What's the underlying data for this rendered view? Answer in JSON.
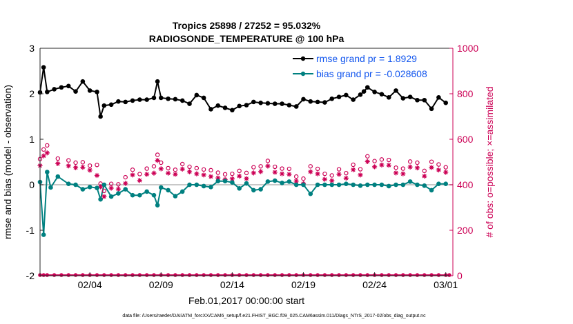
{
  "chart_data": {
    "type": "line",
    "title": "Tropics 25898 / 27252 = 95.032%",
    "subtitle": "RADIOSONDE_TEMPERATURE @ 100 hPa",
    "xlabel": "Feb.01,2017 00:00:00 start",
    "ylabel": "rmse and bias (model - observation)",
    "y2label": "# of obs: o=possible; ×=assimilated",
    "xlim": [
      0,
      29
    ],
    "ylim": [
      -2,
      3
    ],
    "y2lim": [
      0,
      1000
    ],
    "x_tick_values": [
      3.5,
      8.5,
      13.5,
      18.5,
      23.5,
      28.5
    ],
    "x_tick_labels": [
      "02/04",
      "02/09",
      "02/14",
      "02/19",
      "02/24",
      "03/01"
    ],
    "y_ticks": [
      "-2",
      "-1",
      "0",
      "1",
      "2",
      "3"
    ],
    "y2_ticks": [
      "0",
      "200",
      "400",
      "600",
      "800",
      "1000"
    ],
    "legend": [
      "rmse grand pr = 1.8929",
      "bias grand pr = -0.028608"
    ],
    "series": [
      {
        "name": "rmse",
        "color": "#000000",
        "points": [
          [
            0.0,
            2.03
          ],
          [
            0.25,
            2.58
          ],
          [
            0.5,
            2.04
          ],
          [
            1.0,
            2.1
          ],
          [
            1.5,
            2.14
          ],
          [
            2.0,
            2.17
          ],
          [
            2.5,
            2.05
          ],
          [
            3.0,
            2.27
          ],
          [
            3.5,
            2.07
          ],
          [
            4.0,
            2.04
          ],
          [
            4.25,
            1.5
          ],
          [
            4.5,
            1.74
          ],
          [
            5.0,
            1.76
          ],
          [
            5.5,
            1.83
          ],
          [
            6.0,
            1.82
          ],
          [
            6.5,
            1.85
          ],
          [
            7.0,
            1.87
          ],
          [
            7.5,
            1.87
          ],
          [
            8.0,
            1.91
          ],
          [
            8.25,
            2.27
          ],
          [
            8.5,
            1.91
          ],
          [
            9.0,
            1.89
          ],
          [
            9.5,
            1.88
          ],
          [
            10.0,
            1.85
          ],
          [
            10.5,
            1.78
          ],
          [
            11.0,
            1.97
          ],
          [
            11.5,
            1.91
          ],
          [
            12.0,
            1.66
          ],
          [
            12.5,
            1.74
          ],
          [
            13.0,
            1.69
          ],
          [
            13.5,
            1.64
          ],
          [
            14.0,
            1.73
          ],
          [
            14.5,
            1.75
          ],
          [
            15.0,
            1.82
          ],
          [
            15.5,
            1.8
          ],
          [
            16.0,
            1.79
          ],
          [
            16.5,
            1.78
          ],
          [
            17.0,
            1.78
          ],
          [
            17.5,
            1.75
          ],
          [
            18.0,
            1.72
          ],
          [
            18.5,
            1.88
          ],
          [
            19.0,
            1.83
          ],
          [
            19.5,
            1.82
          ],
          [
            20.0,
            1.81
          ],
          [
            20.5,
            1.89
          ],
          [
            21.0,
            1.93
          ],
          [
            21.5,
            1.97
          ],
          [
            22.0,
            1.87
          ],
          [
            22.5,
            1.98
          ],
          [
            22.75,
            2.05
          ],
          [
            23.0,
            2.14
          ],
          [
            23.5,
            2.04
          ],
          [
            24.0,
            1.99
          ],
          [
            24.5,
            1.92
          ],
          [
            25.0,
            2.07
          ],
          [
            25.5,
            1.9
          ],
          [
            26.0,
            1.93
          ],
          [
            26.5,
            1.86
          ],
          [
            27.0,
            1.86
          ],
          [
            27.5,
            1.67
          ],
          [
            28.0,
            1.92
          ],
          [
            28.5,
            1.8
          ]
        ]
      },
      {
        "name": "bias",
        "color": "#008080",
        "points": [
          [
            0.0,
            0.06
          ],
          [
            0.25,
            -1.1
          ],
          [
            0.5,
            0.28
          ],
          [
            0.75,
            -0.06
          ],
          [
            1.25,
            0.18
          ],
          [
            2.0,
            0.02
          ],
          [
            2.5,
            0.0
          ],
          [
            3.0,
            -0.1
          ],
          [
            3.5,
            -0.05
          ],
          [
            4.0,
            -0.07
          ],
          [
            4.25,
            -0.32
          ],
          [
            4.5,
            0.0
          ],
          [
            5.0,
            -0.26
          ],
          [
            5.5,
            -0.19
          ],
          [
            6.0,
            -0.1
          ],
          [
            6.5,
            -0.23
          ],
          [
            7.0,
            -0.23
          ],
          [
            7.5,
            -0.15
          ],
          [
            8.0,
            -0.23
          ],
          [
            8.25,
            -0.45
          ],
          [
            8.5,
            -0.06
          ],
          [
            9.0,
            -0.12
          ],
          [
            9.5,
            -0.25
          ],
          [
            10.0,
            -0.15
          ],
          [
            10.5,
            0.0
          ],
          [
            11.0,
            0.0
          ],
          [
            11.5,
            -0.03
          ],
          [
            12.0,
            -0.05
          ],
          [
            12.5,
            0.08
          ],
          [
            13.0,
            0.08
          ],
          [
            13.5,
            0.05
          ],
          [
            14.0,
            -0.08
          ],
          [
            14.5,
            0.03
          ],
          [
            15.0,
            -0.12
          ],
          [
            15.5,
            -0.1
          ],
          [
            16.0,
            0.07
          ],
          [
            16.5,
            0.09
          ],
          [
            17.0,
            0.04
          ],
          [
            17.5,
            0.07
          ],
          [
            18.0,
            0.0
          ],
          [
            18.5,
            0.0
          ],
          [
            19.0,
            -0.2
          ],
          [
            19.5,
            0.0
          ],
          [
            20.0,
            0.0
          ],
          [
            20.5,
            0.0
          ],
          [
            21.0,
            0.0
          ],
          [
            21.5,
            0.02
          ],
          [
            22.0,
            0.0
          ],
          [
            22.5,
            -0.02
          ],
          [
            23.0,
            0.0
          ],
          [
            23.5,
            0.0
          ],
          [
            24.0,
            0.0
          ],
          [
            24.5,
            -0.03
          ],
          [
            25.0,
            0.0
          ],
          [
            25.5,
            0.0
          ],
          [
            26.0,
            0.07
          ],
          [
            26.5,
            0.0
          ],
          [
            27.0,
            -0.02
          ],
          [
            27.5,
            -0.12
          ],
          [
            28.0,
            0.02
          ],
          [
            28.5,
            0.02
          ]
        ]
      }
    ],
    "obs_possible": {
      "color": "#CC0055",
      "marker": "o",
      "points": [
        [
          0.0,
          513
        ],
        [
          0.25,
          555
        ],
        [
          0.5,
          573
        ],
        [
          1.25,
          515
        ],
        [
          2.0,
          507
        ],
        [
          2.5,
          497
        ],
        [
          3.0,
          499
        ],
        [
          3.5,
          484
        ],
        [
          4.0,
          487
        ],
        [
          4.25,
          405
        ],
        [
          4.5,
          373
        ],
        [
          5.0,
          404
        ],
        [
          5.5,
          402
        ],
        [
          6.0,
          433
        ],
        [
          6.5,
          466
        ],
        [
          7.0,
          447
        ],
        [
          7.5,
          471
        ],
        [
          8.0,
          481
        ],
        [
          8.25,
          532
        ],
        [
          8.5,
          497
        ],
        [
          9.0,
          473
        ],
        [
          9.5,
          466
        ],
        [
          10.0,
          491
        ],
        [
          10.5,
          479
        ],
        [
          11.0,
          473
        ],
        [
          11.5,
          467
        ],
        [
          12.0,
          464
        ],
        [
          12.5,
          453
        ],
        [
          13.0,
          446
        ],
        [
          13.5,
          448
        ],
        [
          14.0,
          461
        ],
        [
          14.5,
          452
        ],
        [
          15.0,
          477
        ],
        [
          15.5,
          481
        ],
        [
          16.0,
          505
        ],
        [
          16.5,
          479
        ],
        [
          17.0,
          471
        ],
        [
          17.5,
          470
        ],
        [
          18.0,
          436
        ],
        [
          18.5,
          427
        ],
        [
          19.0,
          481
        ],
        [
          19.5,
          470
        ],
        [
          20.0,
          448
        ],
        [
          20.5,
          441
        ],
        [
          21.0,
          468
        ],
        [
          21.5,
          451
        ],
        [
          22.0,
          488
        ],
        [
          22.5,
          468
        ],
        [
          23.0,
          525
        ],
        [
          23.5,
          504
        ],
        [
          24.0,
          511
        ],
        [
          24.5,
          509
        ],
        [
          25.0,
          475
        ],
        [
          25.5,
          471
        ],
        [
          26.0,
          502
        ],
        [
          26.5,
          497
        ],
        [
          27.0,
          461
        ],
        [
          27.5,
          501
        ],
        [
          28.0,
          489
        ],
        [
          28.5,
          477
        ]
      ]
    },
    "obs_assimilated": {
      "color": "#CC0055",
      "marker": "*",
      "points": [
        [
          0.0,
          484
        ],
        [
          0.25,
          527
        ],
        [
          0.5,
          540
        ],
        [
          1.25,
          493
        ],
        [
          2.0,
          483
        ],
        [
          2.5,
          475
        ],
        [
          3.0,
          477
        ],
        [
          3.5,
          464
        ],
        [
          4.0,
          441
        ],
        [
          4.25,
          391
        ],
        [
          4.5,
          348
        ],
        [
          5.0,
          385
        ],
        [
          5.5,
          381
        ],
        [
          6.0,
          406
        ],
        [
          6.5,
          443
        ],
        [
          7.0,
          419
        ],
        [
          7.5,
          446
        ],
        [
          8.0,
          451
        ],
        [
          8.25,
          507
        ],
        [
          8.5,
          470
        ],
        [
          9.0,
          451
        ],
        [
          9.5,
          446
        ],
        [
          10.0,
          469
        ],
        [
          10.5,
          457
        ],
        [
          11.0,
          448
        ],
        [
          11.5,
          443
        ],
        [
          12.0,
          436
        ],
        [
          12.5,
          430
        ],
        [
          13.0,
          423
        ],
        [
          13.5,
          426
        ],
        [
          14.0,
          438
        ],
        [
          14.5,
          427
        ],
        [
          15.0,
          452
        ],
        [
          15.5,
          458
        ],
        [
          16.0,
          482
        ],
        [
          16.5,
          455
        ],
        [
          17.0,
          448
        ],
        [
          17.5,
          446
        ],
        [
          18.0,
          416
        ],
        [
          18.5,
          405
        ],
        [
          19.0,
          457
        ],
        [
          19.5,
          448
        ],
        [
          20.0,
          424
        ],
        [
          20.5,
          418
        ],
        [
          21.0,
          446
        ],
        [
          21.5,
          429
        ],
        [
          22.0,
          466
        ],
        [
          22.5,
          443
        ],
        [
          23.0,
          502
        ],
        [
          23.5,
          479
        ],
        [
          24.0,
          487
        ],
        [
          24.5,
          486
        ],
        [
          25.0,
          452
        ],
        [
          25.5,
          448
        ],
        [
          26.0,
          478
        ],
        [
          26.5,
          474
        ],
        [
          27.0,
          438
        ],
        [
          27.5,
          476
        ],
        [
          28.0,
          465
        ],
        [
          28.5,
          455
        ]
      ]
    },
    "obs_baseline": {
      "color": "#CC0055",
      "x": [
        0.0,
        0.25,
        0.5,
        1.0,
        1.5,
        2.0,
        2.5,
        3.0,
        3.5,
        4.0,
        4.5,
        5.0,
        5.5,
        6.0,
        6.5,
        7.0,
        7.5,
        8.0,
        8.5,
        9.0,
        9.5,
        10.0,
        10.5,
        11.0,
        11.5,
        12.0,
        12.5,
        13.0,
        13.5,
        14.0,
        14.5,
        15.0,
        15.5,
        16.0,
        16.5,
        17.0,
        17.5,
        18.0,
        18.5,
        19.0,
        19.5,
        20.0,
        20.5,
        21.0,
        21.5,
        22.0,
        22.5,
        23.0,
        23.5,
        24.0,
        24.5,
        25.0,
        25.5,
        26.0,
        26.5,
        27.0,
        27.5,
        28.0,
        28.5,
        28.75
      ],
      "value": 0
    }
  },
  "footer": {
    "datafile": "data file: /Users/raeder/DAI/ATM_forcXX/CAM6_setup/f.e21.FHIST_BGC.f09_025.CAM6assim.011/Diags_NTrS_2017-02/obs_diag_output.nc"
  }
}
